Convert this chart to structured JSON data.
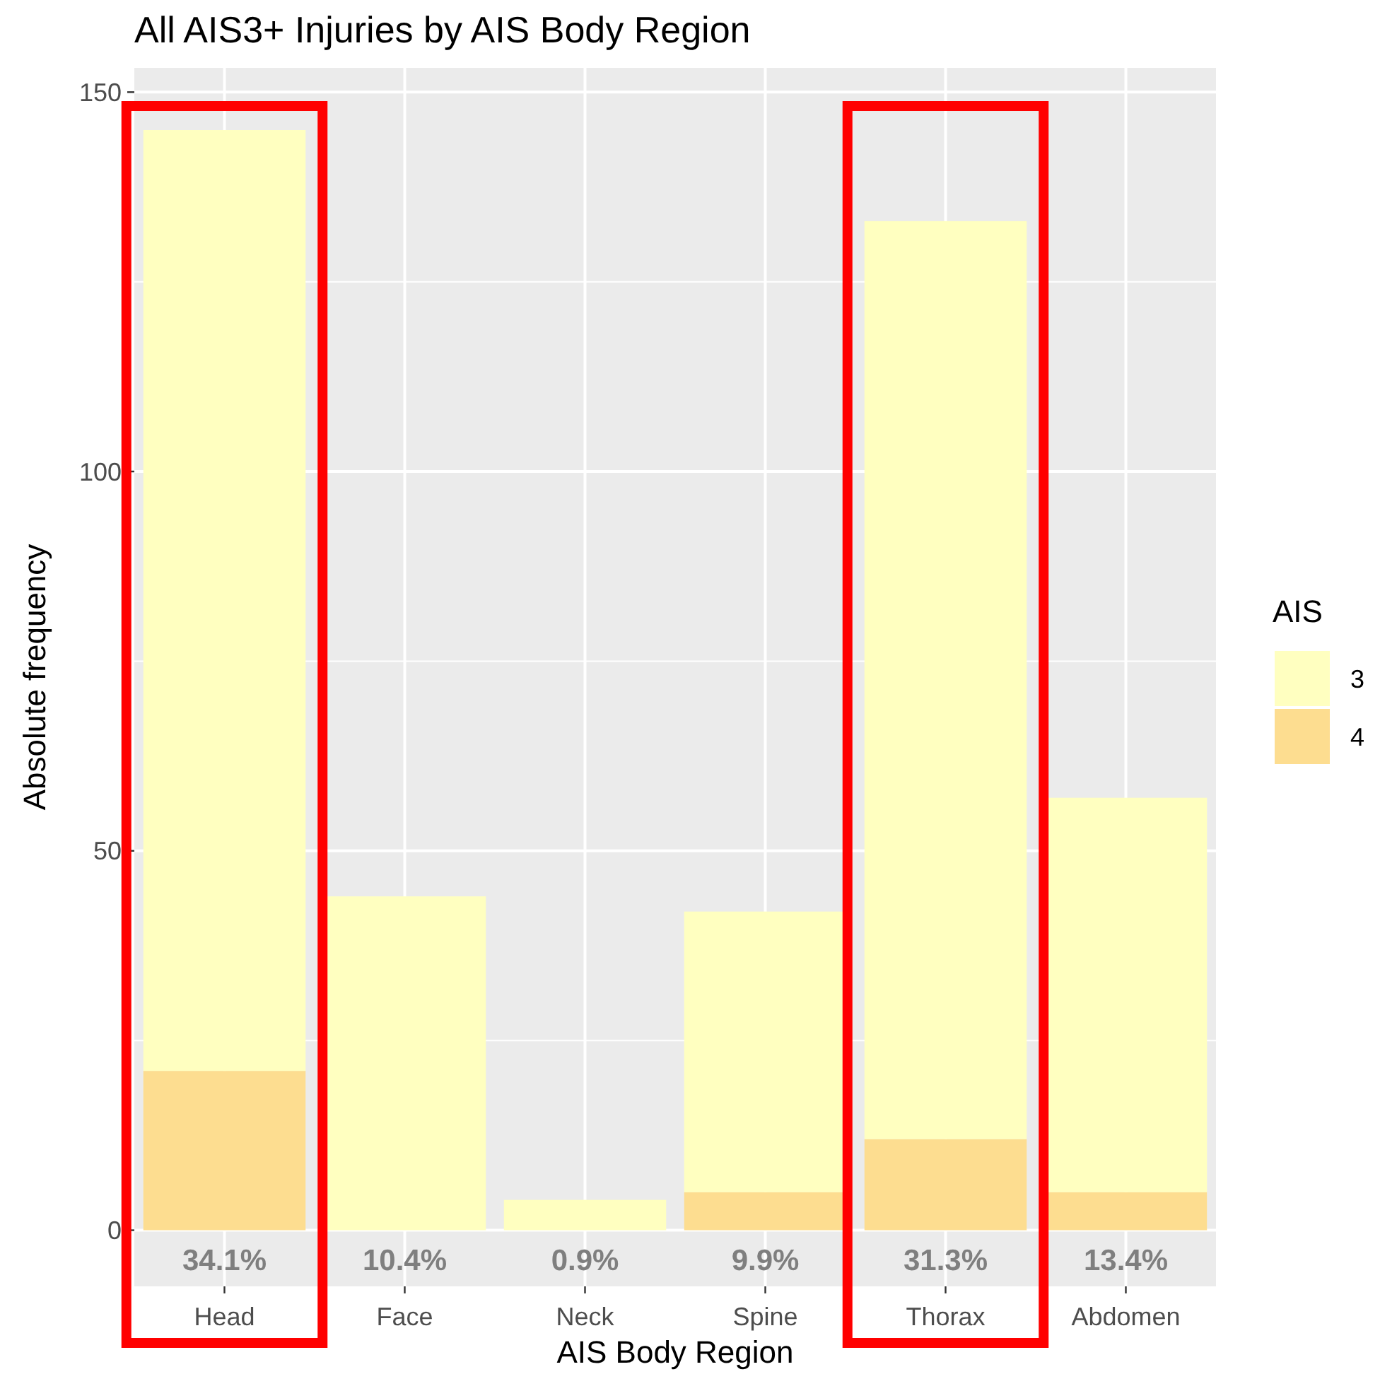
{
  "chart_data": {
    "type": "bar",
    "title": "All AIS3+ Injuries by AIS Body Region",
    "xlabel": "AIS Body Region",
    "ylabel": "Absolute frequency",
    "legend_title": "AIS",
    "categories": [
      "Head",
      "Face",
      "Neck",
      "Spine",
      "Thorax",
      "Abdomen"
    ],
    "series": [
      {
        "name": "4",
        "color": "#fddd90",
        "values": [
          21,
          0,
          0,
          5,
          12,
          5
        ]
      },
      {
        "name": "3",
        "color": "#ffffc0",
        "values": [
          124,
          44,
          4,
          37,
          121,
          52
        ]
      }
    ],
    "stacked": true,
    "ylim": [
      -7.4,
      153.2
    ],
    "yticks": [
      0,
      50,
      100,
      150
    ],
    "grid": true,
    "legend": "right",
    "annotations": [
      "34.1%",
      "10.4%",
      "0.9%",
      "9.9%",
      "31.3%",
      "13.4%"
    ]
  }
}
